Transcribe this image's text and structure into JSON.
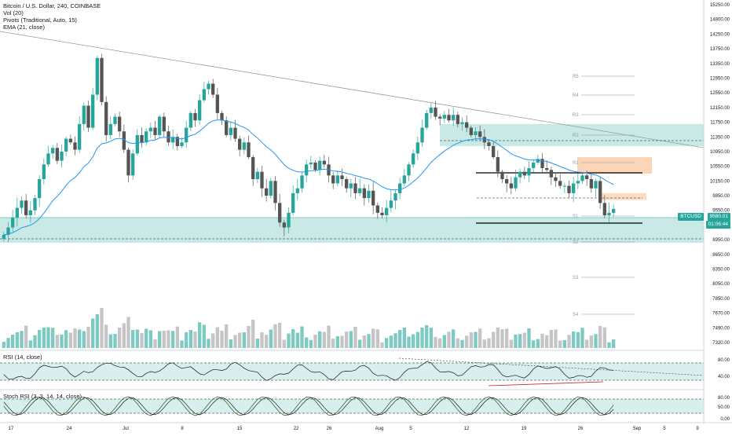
{
  "legend": {
    "title": "Bitcoin / U.S. Dollar, 240, COINBASE",
    "vol": "Vol (20)",
    "pivots": "Pivots (Traditional, Auto, 15)",
    "ema": "EMA (21, close)"
  },
  "rsi_label": "RSI (14, close)",
  "stoch_label": "Stoch RSI (3, 3, 14, 14, close)",
  "price_axis": [
    "15250.00",
    "14800.00",
    "14250.00",
    "13750.00",
    "13350.00",
    "12950.00",
    "12550.00",
    "12150.00",
    "11750.00",
    "11350.00",
    "10950.00",
    "10550.00",
    "10150.00",
    "9850.00",
    "9550.00",
    "9250.00",
    "8950.00",
    "8650.00",
    "8350.00",
    "8050.00",
    "7850.00",
    "7670.00",
    "7490.00",
    "7320.00"
  ],
  "rsi_axis": [
    "80.00",
    "40.00"
  ],
  "stoch_axis": [
    "80.00",
    "50.00",
    "0.00"
  ],
  "time_axis": [
    "17",
    "24",
    "Jul",
    "8",
    "15",
    "22",
    "26",
    "Aug",
    "5",
    "12",
    "19",
    "26",
    "Sep",
    "5",
    "9"
  ],
  "ticker_tag": "BTCUSD",
  "current_price": "9580.01",
  "countdown": "01:06:44",
  "pivots": [
    "R5",
    "R4",
    "R3",
    "R2",
    "R1",
    "S1",
    "S2",
    "S3",
    "S4"
  ],
  "colors": {
    "up": "#26a69a",
    "down": "#555555",
    "ema": "#2196f3",
    "zone": "#b2dfdb",
    "supply": "#f7b27a",
    "rsi_line": "#131722",
    "stoch_k": "#1b5e20",
    "stoch_d": "#000000",
    "price_tag": "#26a69a"
  },
  "chart_data": {
    "type": "candlestick",
    "symbol": "BTCUSD",
    "interval": "240",
    "exchange": "COINBASE",
    "yrange": [
      7320,
      15250
    ],
    "last_price": 9580.01,
    "closes": [
      9050,
      9200,
      9400,
      9600,
      9750,
      9450,
      9550,
      9800,
      10200,
      10600,
      10900,
      11050,
      10700,
      10950,
      11300,
      11200,
      11000,
      11700,
      12200,
      11600,
      12500,
      13500,
      12300,
      11400,
      11700,
      11900,
      11500,
      11000,
      10300,
      10900,
      11400,
      11200,
      11500,
      11600,
      11400,
      11900,
      11500,
      11200,
      11350,
      11100,
      11200,
      11600,
      12000,
      11800,
      12350,
      12650,
      12800,
      12500,
      12000,
      11800,
      11400,
      11600,
      11300,
      11000,
      11200,
      10800,
      10200,
      10400,
      10000,
      9850,
      10150,
      9700,
      9300,
      9200,
      9500,
      9900,
      10000,
      10300,
      10600,
      10650,
      10450,
      10700,
      10600,
      10300,
      10100,
      10300,
      10200,
      10000,
      10100,
      9900,
      10000,
      9800,
      9950,
      9650,
      9500,
      9450,
      9600,
      9750,
      9900,
      10100,
      10300,
      10600,
      10900,
      11200,
      11600,
      12000,
      12150,
      11900,
      11850,
      11950,
      11800,
      11950,
      11700,
      11750,
      11600,
      11400,
      11500,
      11350,
      11200,
      11100,
      10800,
      10400,
      10200,
      10100,
      10000,
      10250,
      10400,
      10300,
      10500,
      10650,
      10750,
      10500,
      10450,
      10250,
      10150,
      10050,
      10050,
      9900,
      10100,
      10150,
      10300,
      10200,
      10000,
      10150,
      9700,
      9450,
      9500,
      9580
    ]
  }
}
